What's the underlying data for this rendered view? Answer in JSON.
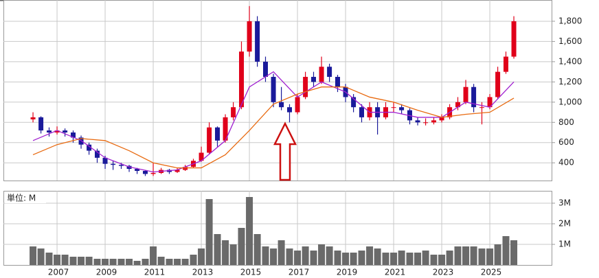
{
  "chart_data": {
    "type": "candlestick",
    "x": [
      2006,
      2006.33,
      2006.67,
      2007,
      2007.33,
      2007.67,
      2008,
      2008.33,
      2008.67,
      2009,
      2009.33,
      2009.67,
      2010,
      2010.33,
      2010.67,
      2011,
      2011.33,
      2011.67,
      2012,
      2012.33,
      2012.67,
      2013,
      2013.33,
      2013.67,
      2014,
      2014.33,
      2014.67,
      2015,
      2015.33,
      2015.67,
      2016,
      2016.33,
      2016.67,
      2017,
      2017.33,
      2017.67,
      2018,
      2018.33,
      2018.67,
      2019,
      2019.33,
      2019.67,
      2020,
      2020.33,
      2020.67,
      2021,
      2021.33,
      2021.67,
      2022,
      2022.33,
      2022.67,
      2023,
      2023.33,
      2023.67,
      2024,
      2024.33,
      2024.67,
      2025,
      2025.33,
      2025.67,
      2026
    ],
    "open": [
      830,
      850,
      720,
      700,
      720,
      700,
      650,
      580,
      520,
      450,
      390,
      380,
      370,
      340,
      320,
      290,
      300,
      330,
      310,
      330,
      360,
      420,
      500,
      750,
      620,
      850,
      950,
      1500,
      1800,
      1400,
      1250,
      1000,
      950,
      900,
      1050,
      1250,
      1200,
      1350,
      1250,
      1150,
      1050,
      950,
      850,
      950,
      850,
      950,
      950,
      920,
      820,
      800,
      800,
      820,
      850,
      950,
      1000,
      1150,
      950,
      950,
      1050,
      1300,
      1450
    ],
    "high": [
      900,
      860,
      750,
      760,
      740,
      720,
      670,
      600,
      540,
      470,
      420,
      400,
      380,
      350,
      330,
      400,
      350,
      340,
      350,
      380,
      440,
      560,
      800,
      760,
      880,
      1000,
      1600,
      1950,
      1850,
      1450,
      1280,
      1150,
      980,
      1080,
      1300,
      1300,
      1450,
      1380,
      1270,
      1180,
      1080,
      980,
      1000,
      1000,
      1000,
      1000,
      980,
      940,
      850,
      840,
      850,
      880,
      980,
      1050,
      1220,
      1180,
      1000,
      1080,
      1350,
      1500,
      1850
    ],
    "low": [
      800,
      690,
      660,
      680,
      660,
      600,
      540,
      480,
      400,
      340,
      330,
      340,
      310,
      290,
      270,
      270,
      290,
      290,
      300,
      320,
      350,
      410,
      490,
      560,
      600,
      820,
      930,
      1450,
      1350,
      1200,
      950,
      920,
      800,
      880,
      1030,
      1150,
      1180,
      1200,
      1100,
      1000,
      900,
      800,
      820,
      680,
      830,
      900,
      880,
      780,
      770,
      770,
      780,
      800,
      830,
      920,
      980,
      900,
      780,
      930,
      1030,
      1280,
      1430
    ],
    "close": [
      850,
      720,
      700,
      720,
      700,
      650,
      580,
      520,
      450,
      390,
      380,
      370,
      340,
      320,
      290,
      300,
      330,
      310,
      330,
      360,
      420,
      500,
      750,
      620,
      850,
      950,
      1500,
      1800,
      1400,
      1250,
      1000,
      950,
      900,
      1050,
      1250,
      1200,
      1350,
      1250,
      1150,
      1050,
      950,
      850,
      950,
      850,
      950,
      950,
      920,
      820,
      800,
      800,
      820,
      850,
      950,
      1000,
      1150,
      950,
      950,
      1050,
      1300,
      1450,
      1800
    ],
    "up_color": "#e0001a",
    "down_color": "#1a1a9a",
    "moving_averages": [
      {
        "color": "#a020d0",
        "x": [
          2006,
          2007,
          2008,
          2009,
          2010,
          2011,
          2012,
          2013,
          2014,
          2015,
          2016,
          2017,
          2018,
          2019,
          2020,
          2021,
          2022,
          2023,
          2024,
          2025,
          2026
        ],
        "values": [
          620,
          720,
          620,
          450,
          360,
          310,
          330,
          420,
          620,
          1150,
          1300,
          1050,
          1200,
          1100,
          900,
          900,
          850,
          850,
          1000,
          950,
          1200
        ]
      },
      {
        "color": "#e86a10",
        "x": [
          2006,
          2007,
          2008,
          2009,
          2010,
          2011,
          2012,
          2013,
          2014,
          2015,
          2016,
          2017,
          2018,
          2019,
          2020,
          2021,
          2022,
          2023,
          2024,
          2025,
          2026
        ],
        "values": [
          480,
          580,
          640,
          620,
          520,
          400,
          350,
          350,
          480,
          720,
          980,
          1080,
          1150,
          1150,
          1050,
          1000,
          920,
          850,
          880,
          900,
          1040
        ]
      }
    ],
    "xlim": [
      2004.77,
      2027.57
    ],
    "xticks": [
      2007,
      2009,
      2011,
      2013,
      2015,
      2017,
      2019,
      2021,
      2023,
      2025
    ],
    "ylim": [
      225,
      2010
    ],
    "yticks": [
      400,
      600,
      800,
      {
        "value": 1000,
        "label": "1,000"
      },
      {
        "value": 1200,
        "label": "1,200"
      },
      {
        "value": 1400,
        "label": "1,400"
      },
      {
        "value": 1600,
        "label": "1,600"
      },
      {
        "value": 1800,
        "label": "1,800"
      }
    ],
    "grid": true,
    "volume": {
      "unit_label": "単位: M",
      "color": "#6a6a6a",
      "values": [
        0.9,
        0.8,
        0.6,
        0.5,
        0.5,
        0.4,
        0.4,
        0.4,
        0.3,
        0.3,
        0.3,
        0.3,
        0.3,
        0.2,
        0.3,
        0.9,
        0.4,
        0.3,
        0.3,
        0.3,
        0.5,
        0.8,
        3.2,
        1.5,
        1.2,
        1.0,
        1.8,
        3.3,
        1.5,
        0.9,
        0.8,
        1.2,
        0.8,
        0.7,
        0.9,
        0.7,
        1.0,
        0.9,
        0.7,
        0.6,
        0.6,
        0.7,
        0.9,
        0.8,
        0.6,
        0.6,
        0.7,
        0.6,
        0.6,
        0.7,
        0.5,
        0.5,
        0.7,
        0.9,
        0.9,
        0.9,
        0.8,
        0.8,
        1.0,
        1.4,
        1.2
      ],
      "ylim": [
        0,
        3.6
      ],
      "yticks": [
        {
          "value": 1,
          "label": "1M"
        },
        {
          "value": 2,
          "label": "2M"
        },
        {
          "value": 3,
          "label": "3M"
        }
      ]
    }
  }
}
